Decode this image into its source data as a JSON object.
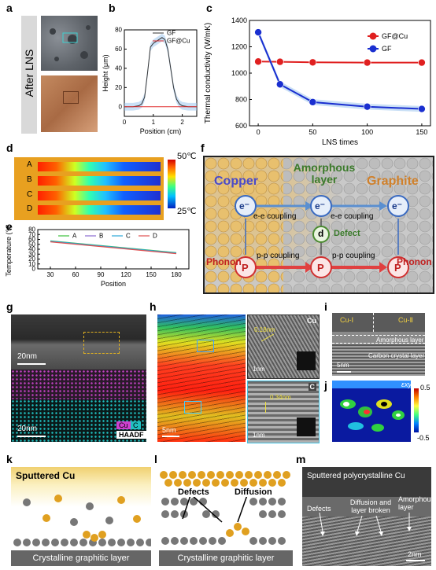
{
  "panels": {
    "a": {
      "label": "a",
      "side_label": "After LNS"
    },
    "b": {
      "label": "b",
      "legend": [
        "GF",
        "GF@Cu"
      ],
      "xlabel": "Position (cm)",
      "ylabel": "Height (μm)"
    },
    "c": {
      "label": "c",
      "legend": [
        "GF@Cu",
        "GF"
      ],
      "xlabel": "LNS times",
      "ylabel": "Thermal conductivity (W/mK)"
    },
    "d": {
      "label": "d",
      "rows": [
        "A",
        "B",
        "C",
        "D"
      ],
      "scale_max": "50℃",
      "scale_min": "25℃"
    },
    "e": {
      "label": "e",
      "legend": [
        "A",
        "B",
        "C",
        "D"
      ],
      "xlabel": "Position",
      "ylabel": "Temperature (℃)"
    },
    "f": {
      "label": "f",
      "copper": "Copper",
      "amorphous": "Amorphous layer",
      "graphite": "Graphite",
      "e_label": "e⁻",
      "d_label": "d",
      "p_label": "P",
      "coupling_ee": "e-e coupling",
      "coupling_pp": "p-p coupling",
      "defect": "Defect",
      "phonon": "Phonon"
    },
    "g": {
      "label": "g",
      "scale": "20nm",
      "legend_cu": "Cu",
      "legend_c": "C",
      "legend_haadf": "HAADF"
    },
    "h": {
      "label": "h",
      "scale": "5nm",
      "inset1_tag": "Cu",
      "inset1_d": "0.18nm",
      "inset1_scale": "1nm",
      "inset2_tag": "C",
      "inset2_d": "0.34nm",
      "inset2_scale": "1nm"
    },
    "i": {
      "label": "i",
      "cu1": "Cu-Ⅰ",
      "cu2": "Cu-Ⅱ",
      "amorphous": "Amorphous layer",
      "carbon": "Carbon crystal layer",
      "scale": "5nm"
    },
    "j": {
      "label": "j",
      "exy": "εxy",
      "max": "0.5",
      "min": "-0.5"
    },
    "k": {
      "label": "k",
      "sputtered": "Sputtered Cu",
      "base": "Crystalline graphitic layer"
    },
    "l": {
      "label": "l",
      "defects": "Defects",
      "diffusion": "Diffusion",
      "base": "Crystalline graphitic layer"
    },
    "m": {
      "label": "m",
      "title": "Sputtered polycrystalline Cu",
      "defects": "Defects",
      "diffusion": "Diffusion and layer broken",
      "amorphous": "Amorphous layer",
      "scale": "2nm"
    }
  },
  "chart_data": [
    {
      "type": "line",
      "id": "b",
      "xlabel": "Position (cm)",
      "ylabel": "Height (μm)",
      "xlim": [
        0,
        2.5
      ],
      "ylim": [
        -10,
        80
      ],
      "xticks": [
        0,
        1,
        2
      ],
      "yticks": [
        0,
        20,
        40,
        60,
        80
      ],
      "series": [
        {
          "name": "GF",
          "color": "#333333",
          "x": [
            0,
            0.3,
            0.5,
            0.6,
            0.7,
            0.8,
            0.9,
            1.0,
            1.1,
            1.2,
            1.3,
            1.4,
            1.5,
            1.6,
            1.7,
            1.8,
            1.9,
            2.0,
            2.2,
            2.5
          ],
          "y": [
            0,
            0,
            1,
            3,
            10,
            35,
            62,
            66,
            68,
            70,
            72,
            70,
            60,
            40,
            20,
            8,
            3,
            1,
            0,
            0
          ]
        },
        {
          "name": "GF@Cu",
          "color": "#e03030",
          "x": [
            0,
            2.5
          ],
          "y": [
            0,
            0
          ]
        }
      ]
    },
    {
      "type": "line",
      "id": "c",
      "xlabel": "LNS times",
      "ylabel": "Thermal conductivity (W/mK)",
      "xlim": [
        -8,
        158
      ],
      "ylim": [
        600,
        1400
      ],
      "xticks": [
        0,
        50,
        100,
        150
      ],
      "yticks": [
        600,
        800,
        1000,
        1200,
        1400
      ],
      "series": [
        {
          "name": "GF@Cu",
          "color": "#e02020",
          "x": [
            0,
            20,
            50,
            100,
            150
          ],
          "y": [
            1088,
            1086,
            1082,
            1080,
            1080
          ]
        },
        {
          "name": "GF",
          "color": "#1a2fd0",
          "x": [
            0,
            20,
            50,
            100,
            150
          ],
          "y": [
            1310,
            915,
            780,
            745,
            728
          ]
        }
      ]
    },
    {
      "type": "line",
      "id": "e",
      "xlabel": "Position",
      "ylabel": "Temperature (℃)",
      "xlim": [
        15,
        195
      ],
      "ylim": [
        0,
        80
      ],
      "xticks": [
        30,
        60,
        90,
        120,
        150,
        180
      ],
      "yticks": [
        0,
        10,
        20,
        30,
        40,
        50,
        60,
        70,
        80
      ],
      "series": [
        {
          "name": "A",
          "color": "#3cc03c",
          "x": [
            30,
            180
          ],
          "y": [
            57,
            33
          ]
        },
        {
          "name": "B",
          "color": "#8a6ad0",
          "x": [
            30,
            180
          ],
          "y": [
            56,
            32
          ]
        },
        {
          "name": "C",
          "color": "#2aa8d8",
          "x": [
            30,
            180
          ],
          "y": [
            56.5,
            32.5
          ]
        },
        {
          "name": "D",
          "color": "#e05050",
          "x": [
            30,
            180
          ],
          "y": [
            55,
            31
          ]
        }
      ]
    }
  ]
}
